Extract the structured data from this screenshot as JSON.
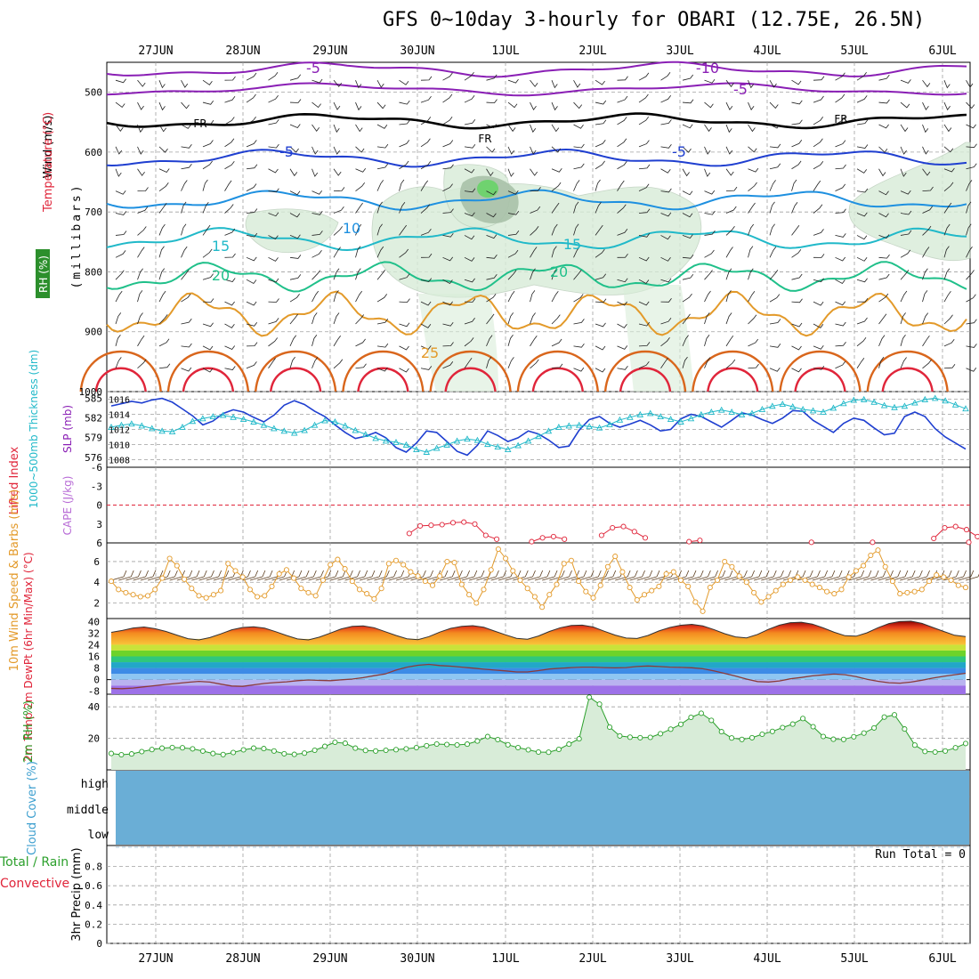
{
  "title": "GFS 0~10day 3-hourly for OBARI (12.75E, 26.5N)",
  "colors": {
    "purple": "#8a1fb5",
    "black": "#000000",
    "blue": "#1f3fd0",
    "azure": "#1e90e0",
    "cyan": "#21b9c9",
    "teal": "#20c08a",
    "orange": "#e39a2a",
    "darkorange": "#d9661c",
    "red": "#e0253a",
    "rhgreen": "#d8ecd8",
    "cloud": "#6aaed6",
    "grid": "#a0a0a0",
    "rh2m": "#2ca02c",
    "wind10": "#e39a2a",
    "cape": "#e0253a"
  },
  "chart_data": {
    "type": "line",
    "x_dates": [
      "27JUN",
      "28JUN",
      "29JUN",
      "30JUN",
      "1JUL",
      "2JUL",
      "3JUL",
      "4JUL",
      "5JUL",
      "6JUL"
    ],
    "panels": {
      "profile": {
        "ylabel": "(millibars)",
        "side_labels": [
          "Wind (m/s)",
          "Temperature (°C)",
          "RH (%)"
        ],
        "y_ticks": [
          "500",
          "600",
          "700",
          "800",
          "900",
          "1000"
        ],
        "y_range": [
          450,
          1000
        ],
        "isotherm_labels": [
          {
            "text": "-5",
            "color": "#8a1fb5"
          },
          {
            "text": "-10",
            "color": "#8a1fb5"
          },
          {
            "text": "-5",
            "color": "#8a1fb5"
          },
          {
            "text": "FR",
            "color": "#000000"
          },
          {
            "text": "FR",
            "color": "#000000"
          },
          {
            "text": "FR",
            "color": "#000000"
          },
          {
            "text": "-5",
            "color": "#1f3fd0"
          },
          {
            "text": "-5",
            "color": "#1f3fd0"
          },
          {
            "text": "10",
            "color": "#1e90e0"
          },
          {
            "text": "15",
            "color": "#21b9c9"
          },
          {
            "text": "15",
            "color": "#21b9c9"
          },
          {
            "text": "20",
            "color": "#20c08a"
          },
          {
            "text": "20",
            "color": "#20c08a"
          },
          {
            "text": "25",
            "color": "#e39a2a"
          }
        ]
      },
      "slp_thickness": {
        "ylabel_left": "1000~500mb Thickness (dm)",
        "ylabel_right": "SLP (mb)",
        "thickness_ticks": [
          "585",
          "582",
          "579",
          "576"
        ],
        "slp_ticks": [
          "1016",
          "1014",
          "1012",
          "1010",
          "1008"
        ],
        "series": [
          {
            "name": "SLP",
            "values": [
              1015.1,
              1015.4,
              1015.7,
              1015.5,
              1015.9,
              1016.1,
              1015.6,
              1014.7,
              1013.8,
              1012.6,
              1013.1,
              1014.1,
              1014.6,
              1014.3,
              1013.6,
              1013.0,
              1013.9,
              1015.2,
              1015.8,
              1015.3,
              1014.4,
              1013.7,
              1012.6,
              1011.6,
              1010.8,
              1011.1,
              1011.6,
              1010.9,
              1009.6,
              1009.0,
              1010.2,
              1011.8,
              1011.6,
              1010.4,
              1009.1,
              1008.6,
              1009.9,
              1011.8,
              1011.2,
              1010.4,
              1010.9,
              1011.8,
              1011.4,
              1010.6,
              1009.6,
              1009.8,
              1011.9,
              1013.3,
              1013.7,
              1012.8,
              1012.3,
              1012.7,
              1013.2,
              1012.6,
              1011.8,
              1012.0,
              1013.4,
              1014.0,
              1013.7,
              1013.0,
              1012.3,
              1013.2,
              1014.2,
              1013.9,
              1013.3,
              1012.8,
              1013.5,
              1014.5,
              1014.4,
              1013.2,
              1012.4,
              1011.6,
              1012.8,
              1013.5,
              1013.2,
              1012.2,
              1011.3,
              1011.5,
              1013.7,
              1014.3,
              1013.7,
              1012.1,
              1011.0,
              1010.2,
              1009.4
            ]
          },
          {
            "name": "Thickness",
            "values": [
              580.6,
              580.9,
              581.1,
              580.8,
              580.4,
              580.0,
              579.9,
              580.6,
              581.5,
              581.9,
              582.2,
              582.4,
              582.1,
              581.8,
              581.4,
              580.9,
              580.4,
              580.0,
              579.7,
              580.1,
              580.9,
              581.6,
              581.4,
              580.8,
              580.1,
              579.5,
              578.9,
              578.5,
              578.3,
              577.9,
              577.2,
              576.8,
              577.4,
              577.9,
              578.5,
              578.8,
              578.6,
              578.0,
              577.6,
              577.2,
              577.8,
              578.5,
              579.2,
              580.0,
              580.6,
              580.8,
              580.9,
              580.7,
              580.5,
              581.0,
              581.7,
              582.1,
              582.5,
              582.7,
              582.2,
              581.8,
              581.4,
              581.9,
              582.5,
              582.9,
              583.2,
              582.9,
              582.5,
              582.7,
              583.3,
              583.8,
              584.1,
              583.7,
              583.3,
              583.1,
              582.9,
              583.5,
              584.2,
              584.7,
              584.8,
              584.4,
              583.9,
              583.6,
              583.8,
              584.3,
              584.8,
              585.0,
              584.6,
              584.0,
              583.4
            ]
          }
        ]
      },
      "cape_li": {
        "ylabel_left": "Lifted Index",
        "ylabel_right": "CAPE (J/kg)",
        "y_ticks": [
          "-6",
          "-3",
          "0",
          "3",
          "6"
        ],
        "li_segments": [
          {
            "x_start": 29.9,
            "values": [
              4.5,
              3.3,
              3.2,
              3.1,
              2.8,
              2.7,
              3.0,
              4.8,
              5.4
            ]
          },
          {
            "x_start": 31.3,
            "values": [
              5.8,
              5.2,
              5.0,
              5.4
            ]
          },
          {
            "x_start": 32.1,
            "values": [
              4.8,
              3.6,
              3.4,
              4.2,
              5.2
            ]
          },
          {
            "x_start": 33.1,
            "values": [
              5.8,
              5.6
            ]
          },
          {
            "x_start": 34.5,
            "values": [
              5.9
            ]
          },
          {
            "x_start": 35.2,
            "values": [
              5.9
            ]
          },
          {
            "x_start": 35.9,
            "values": [
              5.3,
              3.6,
              3.4,
              3.9,
              5.0
            ]
          },
          {
            "x_start": 36.3,
            "values": [
              5.9
            ]
          }
        ]
      },
      "wind10m": {
        "ylabel": "10m Wind Speed & Barbs (m/s)",
        "y_ticks": [
          "6",
          "4",
          "2"
        ],
        "series": [
          {
            "name": "10m wind speed",
            "values": [
              4.1,
              3.3,
              3.0,
              2.8,
              2.6,
              2.7,
              3.3,
              4.4,
              6.3,
              5.6,
              4.3,
              3.4,
              2.7,
              2.5,
              2.8,
              3.2,
              5.8,
              5.1,
              4.5,
              3.3,
              2.6,
              2.7,
              3.6,
              4.8,
              5.2,
              4.4,
              3.4,
              3.0,
              2.7,
              4.2,
              5.7,
              6.2,
              5.3,
              4.1,
              3.3,
              2.9,
              2.4,
              3.4,
              5.8,
              6.1,
              5.7,
              5.0,
              4.6,
              4.1,
              3.7,
              4.6,
              6.0,
              5.9,
              3.8,
              2.8,
              2.0,
              3.3,
              5.2,
              7.2,
              6.3,
              5.1,
              4.2,
              3.4,
              2.6,
              1.6,
              2.8,
              3.8,
              5.8,
              6.1,
              4.1,
              3.1,
              2.5,
              3.7,
              5.5,
              6.5,
              5.0,
              3.5,
              2.3,
              2.8,
              3.2,
              3.6,
              4.8,
              5.0,
              4.2,
              3.6,
              2.1,
              1.2,
              3.5,
              4.2,
              6.0,
              5.5,
              4.6,
              4.0,
              3.0,
              2.1,
              2.6,
              3.2,
              3.8,
              4.2,
              4.5,
              4.2,
              3.8,
              3.5,
              3.1,
              2.9,
              3.3,
              4.5,
              5.1,
              5.6,
              6.6,
              7.1,
              5.5,
              4.1,
              2.9,
              3.0,
              3.1,
              3.3,
              4.1,
              4.7,
              4.5,
              4.2,
              3.7,
              3.5
            ]
          }
        ]
      },
      "temp2m": {
        "ylabel": "2m Temp 2m DewPt (6hr Min/Max) (°C)",
        "y_ticks": [
          "40",
          "32",
          "24",
          "16",
          "8",
          "0",
          "-8"
        ],
        "series": [
          {
            "name": "2m Temp",
            "values": [
              32.5,
              33.8,
              35.5,
              36.2,
              35.0,
              33.1,
              30.6,
              28.2,
              27.3,
              28.9,
              31.5,
              34.3,
              35.9,
              36.3,
              35.4,
              33.0,
              30.4,
              28.0,
              27.3,
              29.2,
              32.0,
              34.9,
              36.6,
              36.9,
              35.7,
              33.0,
              30.4,
              28.1,
              27.5,
              29.6,
              32.7,
              35.3,
              36.7,
              37.1,
              36.0,
              33.4,
              30.8,
              28.4,
              27.8,
              30.0,
              33.1,
              35.7,
              37.2,
              37.5,
              36.2,
              33.3,
              30.6,
              28.6,
              28.3,
              30.4,
              33.5,
              35.9,
              37.4,
              38.0,
              36.9,
              34.5,
              31.6,
              29.4,
              28.7,
              31.1,
              34.6,
              37.5,
              39.2,
              39.5,
              38.2,
              35.6,
              32.6,
              30.2,
              29.9,
              32.2,
              35.7,
              38.6,
              40.0,
              40.2,
              38.7,
              35.9,
              33.1,
              30.5,
              29.6
            ]
          },
          {
            "name": "2m DewPt",
            "values": [
              -6,
              -6.2,
              -5.8,
              -4.9,
              -4.1,
              -3.3,
              -2.6,
              -1.8,
              -1.2,
              -1.7,
              -3.1,
              -4.4,
              -4.6,
              -3.6,
              -2.6,
              -2.0,
              -1.5,
              -0.7,
              -0.2,
              -0.5,
              -0.7,
              -0.1,
              0.4,
              1.4,
              2.7,
              3.9,
              6.6,
              8.6,
              9.9,
              10.5,
              9.7,
              9.3,
              8.6,
              7.9,
              7.2,
              6.6,
              6.0,
              5.3,
              5.3,
              6.2,
              7.3,
              7.8,
              8.3,
              8.6,
              8.6,
              8.3,
              8.1,
              8.3,
              9.0,
              9.4,
              9.0,
              8.6,
              8.4,
              8.2,
              7.5,
              6.1,
              4.3,
              2.5,
              0.4,
              -1.3,
              -1.6,
              -0.9,
              0.6,
              1.5,
              2.6,
              3.3,
              3.8,
              3.4,
              2.1,
              0.2,
              -1.1,
              -2.1,
              -2.4,
              -1.7,
              -0.4,
              1.1,
              2.3,
              3.4,
              4.4
            ]
          }
        ]
      },
      "rh2m": {
        "ylabel": "2m RH (%)",
        "y_ticks": [
          "40",
          "20"
        ],
        "series": [
          {
            "name": "2m RH",
            "values": [
              10.4,
              9.6,
              10.1,
              11.6,
              12.9,
              13.8,
              14.2,
              14.0,
              13.3,
              11.9,
              10.4,
              9.7,
              11.0,
              12.7,
              13.8,
              13.5,
              12.0,
              10.2,
              9.8,
              10.6,
              12.4,
              14.9,
              17.5,
              16.9,
              13.8,
              12.3,
              12.0,
              12.4,
              12.8,
              13.3,
              14.1,
              15.3,
              16.4,
              16.1,
              15.8,
              16.3,
              18.3,
              21.1,
              19.2,
              15.9,
              14.1,
              12.7,
              11.3,
              11.2,
              13.0,
              16.3,
              19.7,
              46.1,
              41.7,
              27.1,
              21.5,
              20.7,
              20.4,
              20.6,
              22.9,
              25.8,
              28.9,
              33.3,
              35.9,
              31.4,
              24.2,
              20.2,
              19.3,
              20.4,
              22.6,
              24.4,
              26.8,
              29.0,
              32.6,
              27.4,
              21.2,
              19.4,
              19.3,
              21.0,
              23.3,
              26.6,
              33.5,
              34.9,
              25.9,
              15.7,
              11.7,
              11.3,
              12.0,
              14.0,
              16.7
            ]
          }
        ]
      },
      "cloud": {
        "ylabel": "Cloud Cover (%)",
        "y_ticks": [
          "high",
          "middle",
          "low"
        ]
      },
      "precip": {
        "ylabel_left": "Total / Rain",
        "ylabel_left2": "Convective",
        "ylabel": "3hr Precip (mm)",
        "y_ticks": [
          "0.8",
          "0.6",
          "0.4",
          "0.2",
          "0"
        ],
        "y_range": [
          0,
          1.0
        ],
        "run_total": "Run Total = 0",
        "series": [
          {
            "name": "3hr precip",
            "values": []
          }
        ]
      }
    }
  }
}
